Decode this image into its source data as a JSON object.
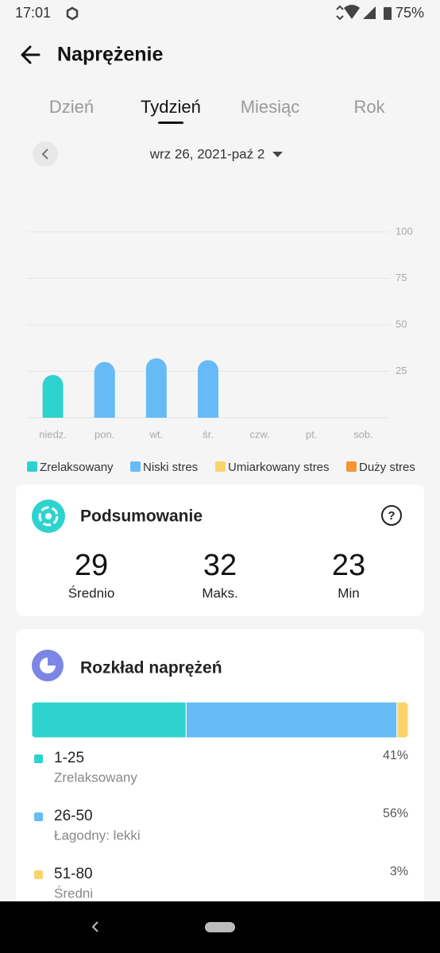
{
  "status_bar": {
    "time": "17:01",
    "battery": "75%"
  },
  "header": {
    "title": "Naprężenie"
  },
  "tabs": {
    "items": [
      "Dzień",
      "Tydzień",
      "Miesiąc",
      "Rok"
    ],
    "active": 1
  },
  "date_range": "wrz 26, 2021-paź 2",
  "chart_data": {
    "type": "bar",
    "categories": [
      "niedz.",
      "pon.",
      "wt.",
      "śr.",
      "czw.",
      "pt.",
      "sob."
    ],
    "values": [
      23,
      30,
      32,
      31,
      null,
      null,
      null
    ],
    "colors": [
      "#2ed3cf",
      "#66bbf7",
      "#66bbf7",
      "#66bbf7",
      null,
      null,
      null
    ],
    "ylim": [
      0,
      100
    ],
    "yticks": [
      25,
      50,
      75,
      100
    ],
    "grid": true,
    "legend": [
      {
        "name": "Zrelaksowany",
        "color": "#2ed3cf"
      },
      {
        "name": "Niski stres",
        "color": "#66bbf7"
      },
      {
        "name": "Umiarkowany stres",
        "color": "#fbd36b"
      },
      {
        "name": "Duży stres",
        "color": "#f79433"
      }
    ]
  },
  "summary": {
    "title": "Podsumowanie",
    "stats": [
      {
        "value": 29,
        "label": "Średnio"
      },
      {
        "value": 32,
        "label": "Maks."
      },
      {
        "value": 23,
        "label": "Min"
      }
    ]
  },
  "distribution": {
    "title": "Rozkład naprężeń",
    "items": [
      {
        "range": "1-25",
        "label": "Zrelaksowany",
        "value": 41,
        "value_label": "41%",
        "color": "#2ed3cf"
      },
      {
        "range": "26-50",
        "label": "Łagodny: lekki",
        "value": 56,
        "value_label": "56%",
        "color": "#66bbf7"
      },
      {
        "range": "51-80",
        "label": "Średni",
        "value": 3,
        "value_label": "3%",
        "color": "#fbd36b"
      }
    ]
  }
}
